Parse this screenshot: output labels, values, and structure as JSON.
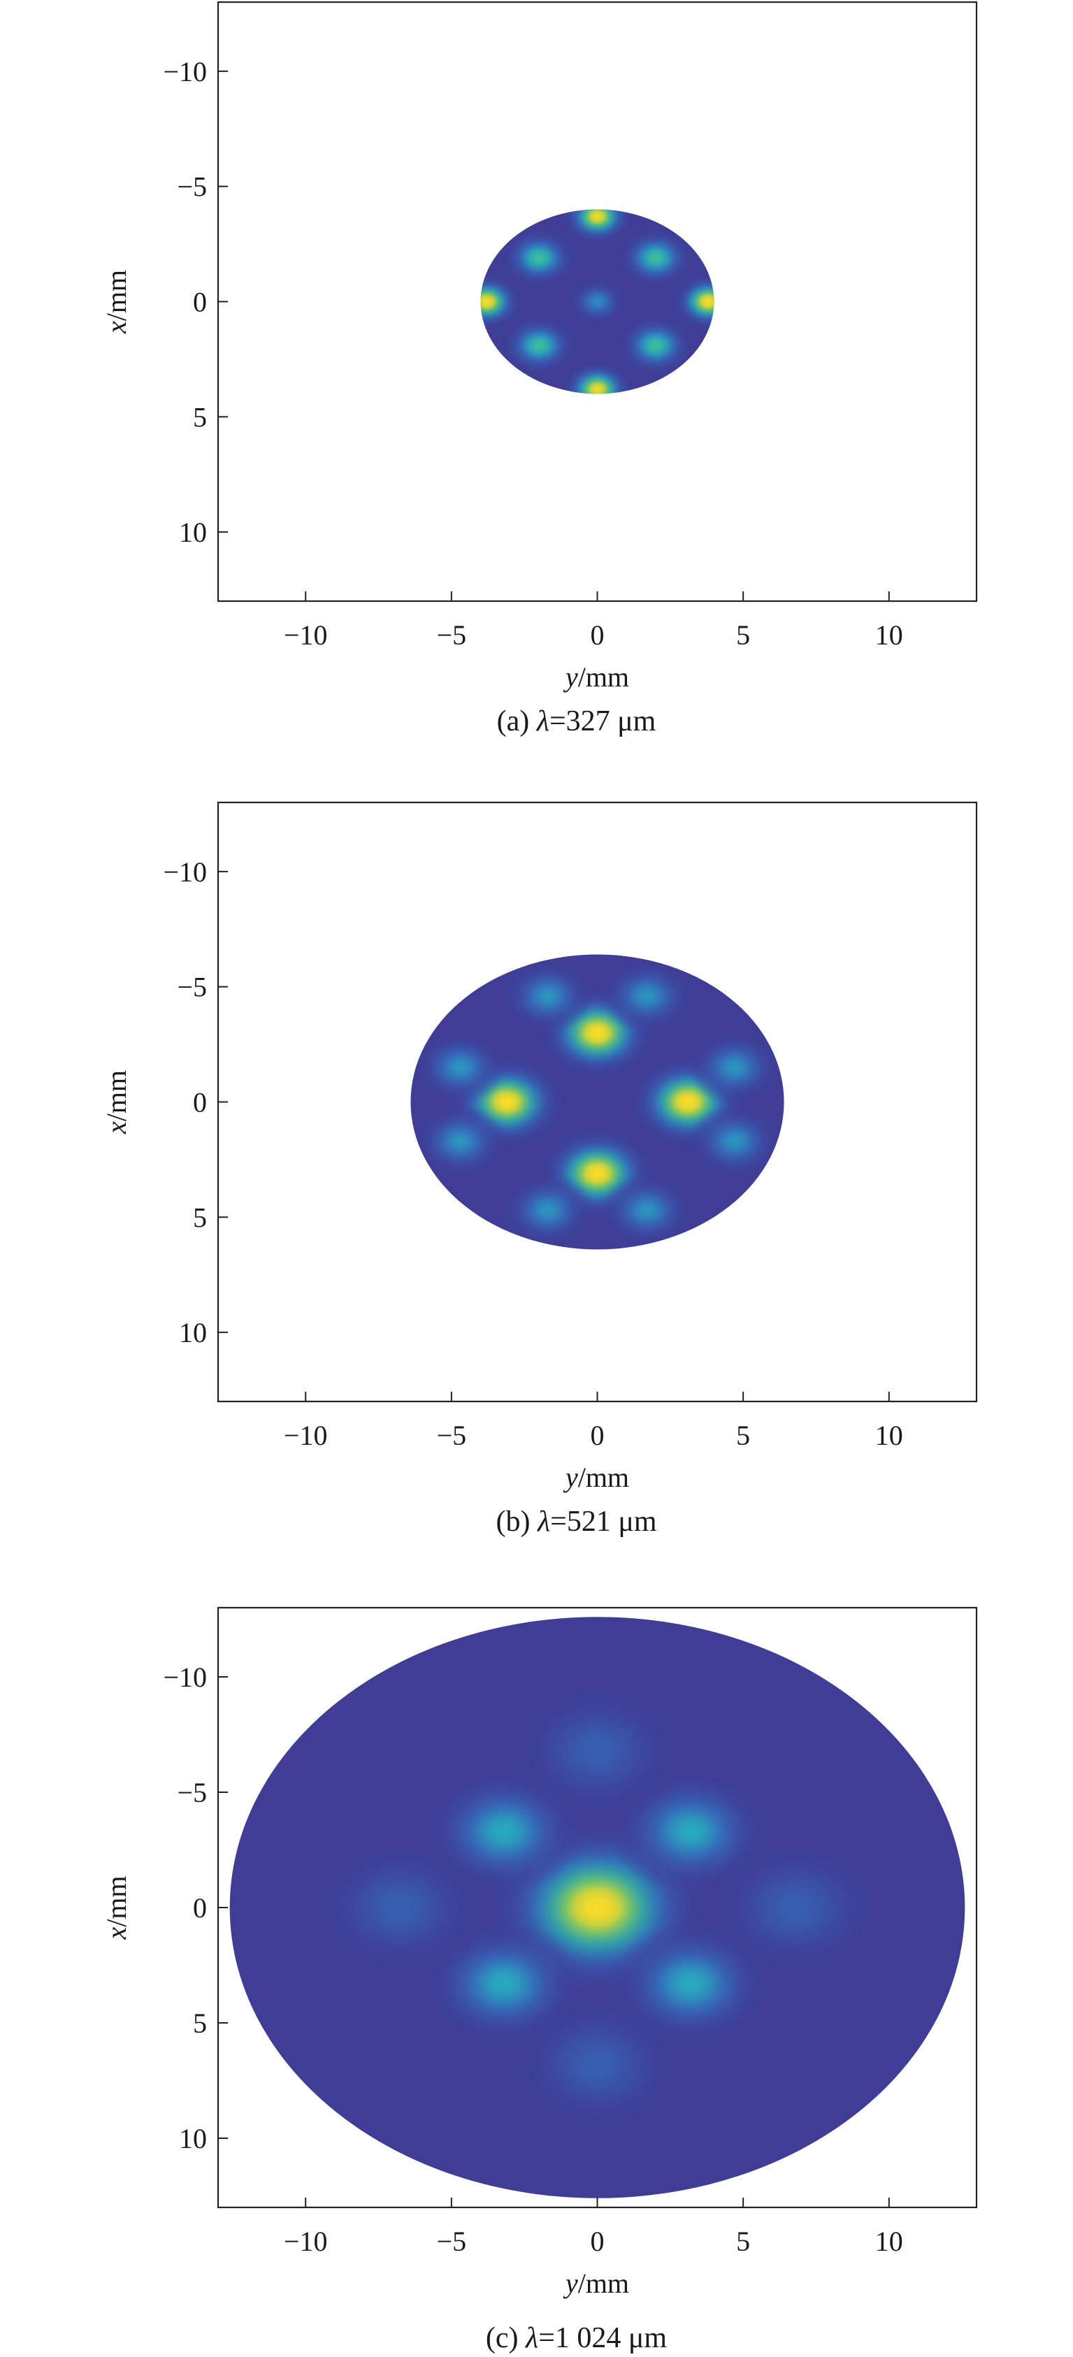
{
  "chart_data": [
    {
      "type": "heatmap",
      "caption_prefix": "(a) ",
      "caption_symbol": "λ",
      "caption_value": "=327 μm",
      "xlabel_var": "y",
      "xlabel_unit": "/mm",
      "ylabel_var": "x",
      "ylabel_unit": "/mm",
      "xlim": [
        -13,
        13
      ],
      "ylim": [
        -13,
        13
      ],
      "y_reversed": true,
      "xticks": [
        -10,
        -5,
        0,
        5,
        10
      ],
      "xtick_labels": [
        "−10",
        "−5",
        "0",
        "5",
        "10"
      ],
      "yticks": [
        -10,
        -5,
        0,
        5,
        10
      ],
      "ytick_labels": [
        "−10",
        "−5",
        "0",
        "5",
        "10"
      ],
      "aperture": {
        "radius_y": 4.0,
        "radius_x": 4.0,
        "background": "#3f3d96"
      },
      "spots": [
        {
          "y": 0,
          "x": -3.7,
          "r": 0.65,
          "peak": 0.95
        },
        {
          "y": 0,
          "x": 3.8,
          "r": 0.65,
          "peak": 0.95
        },
        {
          "y": -3.8,
          "x": 0,
          "r": 0.65,
          "peak": 0.98
        },
        {
          "y": 3.8,
          "x": 0,
          "r": 0.65,
          "peak": 0.98
        },
        {
          "y": -2.0,
          "x": -1.9,
          "r": 0.7,
          "peak": 0.62
        },
        {
          "y": 2.0,
          "x": -1.9,
          "r": 0.7,
          "peak": 0.62
        },
        {
          "y": -2.0,
          "x": 1.9,
          "r": 0.7,
          "peak": 0.62
        },
        {
          "y": 2.0,
          "x": 1.9,
          "r": 0.7,
          "peak": 0.62
        },
        {
          "y": 0,
          "x": 0,
          "r": 0.55,
          "peak": 0.38
        }
      ]
    },
    {
      "type": "heatmap",
      "caption_prefix": "(b) ",
      "caption_symbol": "λ",
      "caption_value": "=521 μm",
      "xlabel_var": "y",
      "xlabel_unit": "/mm",
      "ylabel_var": "x",
      "ylabel_unit": "/mm",
      "xlim": [
        -13,
        13
      ],
      "ylim": [
        -13,
        13
      ],
      "y_reversed": true,
      "xticks": [
        -10,
        -5,
        0,
        5,
        10
      ],
      "xtick_labels": [
        "−10",
        "−5",
        "0",
        "5",
        "10"
      ],
      "yticks": [
        -10,
        -5,
        0,
        5,
        10
      ],
      "ytick_labels": [
        "−10",
        "−5",
        "0",
        "5",
        "10"
      ],
      "aperture": {
        "radius_y": 6.4,
        "radius_x": 6.4,
        "background": "#3f3d96"
      },
      "spots": [
        {
          "y": 0,
          "x": -3.0,
          "r": 1.05,
          "peak": 1.0
        },
        {
          "y": 0,
          "x": 3.1,
          "r": 1.05,
          "peak": 1.0
        },
        {
          "y": -3.1,
          "x": 0,
          "r": 1.05,
          "peak": 1.0
        },
        {
          "y": 3.1,
          "x": 0,
          "r": 1.05,
          "peak": 1.0
        },
        {
          "y": -1.7,
          "x": -4.6,
          "r": 0.85,
          "peak": 0.42
        },
        {
          "y": 1.7,
          "x": -4.6,
          "r": 0.85,
          "peak": 0.42
        },
        {
          "y": -1.7,
          "x": 4.7,
          "r": 0.85,
          "peak": 0.42
        },
        {
          "y": 1.7,
          "x": 4.7,
          "r": 0.85,
          "peak": 0.42
        },
        {
          "y": -4.7,
          "x": -1.5,
          "r": 0.85,
          "peak": 0.42
        },
        {
          "y": 4.7,
          "x": -1.5,
          "r": 0.85,
          "peak": 0.42
        },
        {
          "y": -4.7,
          "x": 1.7,
          "r": 0.85,
          "peak": 0.42
        },
        {
          "y": 4.7,
          "x": 1.7,
          "r": 0.85,
          "peak": 0.42
        }
      ]
    },
    {
      "type": "heatmap",
      "caption_prefix": "(c) ",
      "caption_symbol": "λ",
      "caption_value": "=1 024 μm",
      "xlabel_var": "y",
      "xlabel_unit": "/mm",
      "ylabel_var": "x",
      "ylabel_unit": "/mm",
      "xlim": [
        -13,
        13
      ],
      "ylim": [
        -13,
        13
      ],
      "y_reversed": true,
      "xticks": [
        -10,
        -5,
        0,
        5,
        10
      ],
      "xtick_labels": [
        "−10",
        "−5",
        "0",
        "5",
        "10"
      ],
      "yticks": [
        -10,
        -5,
        0,
        5,
        10
      ],
      "ytick_labels": [
        "−10",
        "−5",
        "0",
        "5",
        "10"
      ],
      "aperture": {
        "radius_y": 12.6,
        "radius_x": 12.6,
        "background": "#3f3d96"
      },
      "spots": [
        {
          "y": 0,
          "x": 0,
          "r": 2.0,
          "peak": 1.0
        },
        {
          "y": -3.2,
          "x": -3.3,
          "r": 1.45,
          "peak": 0.5
        },
        {
          "y": 3.2,
          "x": -3.3,
          "r": 1.45,
          "peak": 0.5
        },
        {
          "y": -3.2,
          "x": 3.3,
          "r": 1.45,
          "peak": 0.5
        },
        {
          "y": 3.2,
          "x": 3.3,
          "r": 1.45,
          "peak": 0.5
        },
        {
          "y": 0,
          "x": -6.8,
          "r": 1.6,
          "peak": 0.2
        },
        {
          "y": 0,
          "x": 6.8,
          "r": 1.6,
          "peak": 0.2
        },
        {
          "y": -6.8,
          "x": 0,
          "r": 1.6,
          "peak": 0.2
        },
        {
          "y": 6.8,
          "x": 0,
          "r": 1.6,
          "peak": 0.2
        }
      ]
    }
  ]
}
